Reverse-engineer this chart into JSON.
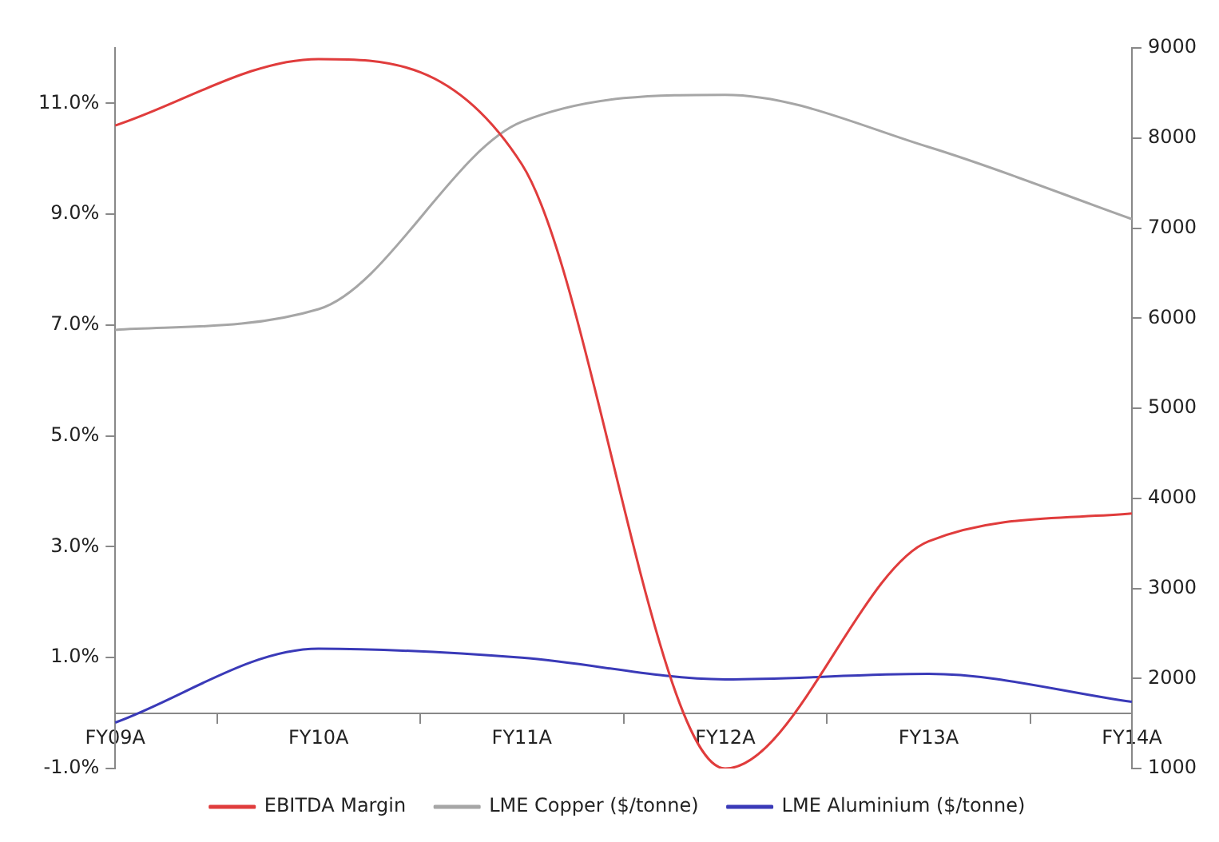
{
  "chart_data": {
    "type": "line",
    "categories": [
      "FY09A",
      "FY10A",
      "FY11A",
      "FY12A",
      "FY13A",
      "FY14A"
    ],
    "series": [
      {
        "name": "EBITDA Margin",
        "color": "#e03c3c",
        "values": [
          10.6,
          11.8,
          9.9,
          -1.0,
          3.1,
          3.6
        ]
      },
      {
        "name": "LME Copper ($/tonne)",
        "color": "#a6a6a6",
        "values": [
          5870,
          6100,
          8180,
          8480,
          7900,
          7100
        ],
        "axis": "y2"
      },
      {
        "name": "LME Aluminium ($/tonne)",
        "color": "#3a3ab8",
        "values": [
          1510,
          2330,
          2230,
          1990,
          2050,
          1740
        ],
        "axis": "y2"
      }
    ],
    "ylim": [
      -1,
      12
    ],
    "yticks": [
      {
        "value": -1,
        "label": "-1.0%"
      },
      {
        "value": 1,
        "label": "1.0%"
      },
      {
        "value": 3,
        "label": "3.0%"
      },
      {
        "value": 5,
        "label": "5.0%"
      },
      {
        "value": 7,
        "label": "7.0%"
      },
      {
        "value": 9,
        "label": "9.0%"
      },
      {
        "value": 11,
        "label": "11.0%"
      }
    ],
    "y2lim": [
      1000,
      9000
    ],
    "y2ticks": [
      1000,
      2000,
      3000,
      4000,
      5000,
      6000,
      7000,
      8000,
      9000
    ],
    "grid": false,
    "legend": "bottom",
    "marker": "none",
    "line_style": "solid"
  }
}
